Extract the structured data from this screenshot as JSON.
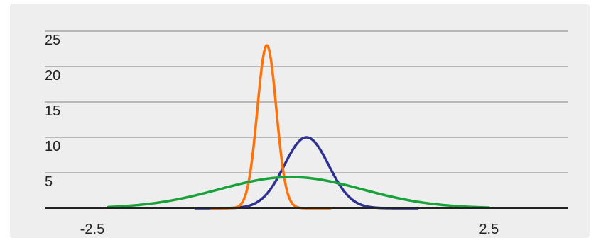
{
  "chart_data": {
    "type": "line",
    "title": "",
    "xlabel": "",
    "ylabel": "",
    "xlim": [
      -3.1,
      3.5
    ],
    "ylim": [
      0,
      25
    ],
    "x_ticks": [
      -2.5,
      2.5
    ],
    "x_tick_labels": [
      "-2.5",
      "2.5"
    ],
    "y_ticks": [
      5,
      10,
      15,
      20,
      25
    ],
    "y_tick_labels": [
      "5",
      "10",
      "15",
      "20",
      "25"
    ],
    "grid": "horizontal",
    "legend": "none",
    "series": [
      {
        "color": "#2e3192",
        "shape": "normal",
        "x_range": [
          -1.2,
          1.6
        ],
        "peak_x": 0.2,
        "peak_y": 10.0,
        "sigma": 0.28
      },
      {
        "color": "#ff7109",
        "shape": "normal",
        "x_range": [
          -1.0,
          0.5
        ],
        "peak_x": -0.3,
        "peak_y": 23.0,
        "sigma": 0.12
      },
      {
        "color": "#18a23a",
        "shape": "normal",
        "x_range": [
          -2.3,
          2.5
        ],
        "peak_x": 0.0,
        "peak_y": 4.4,
        "sigma": 0.9
      }
    ]
  }
}
